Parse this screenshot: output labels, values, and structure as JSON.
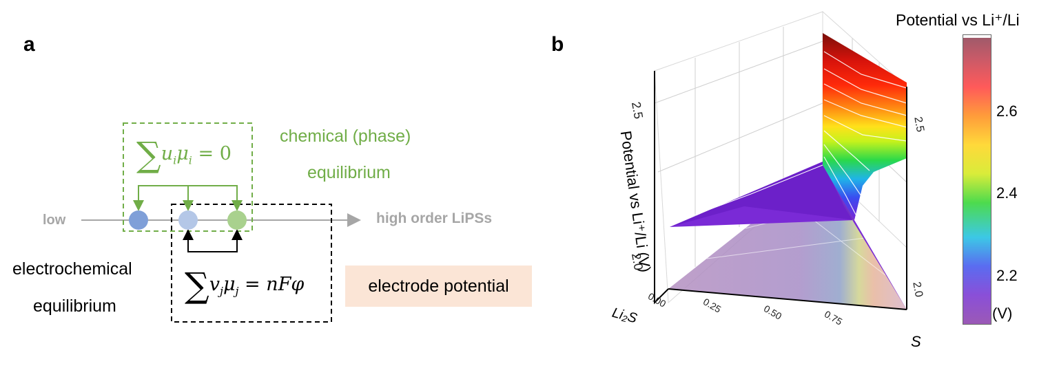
{
  "panel_a": {
    "label": "a",
    "left_text": "low",
    "right_text": "high order LiPSs",
    "chemical": {
      "line1": "chemical (phase)",
      "line2": "equilibrium",
      "sum_symbol": "∑",
      "terms": "u",
      "sub_i": "i",
      "mu": "μ",
      "sub_i2": "i",
      "rhs": " = 0"
    },
    "electrochemical": {
      "line1": "electrochemical",
      "line2": "equilibrium",
      "sum_symbol": "∑",
      "terms": "v",
      "sub_j": "j",
      "mu": "μ",
      "sub_j2": "j",
      "rhs": " = nFφ"
    },
    "electrode_box": "electrode potential",
    "colors": {
      "green": "#70ad47",
      "gray": "#a6a6a6",
      "node1": "#7f9fd8",
      "node2": "#b4c7e7",
      "node3": "#a9d18e",
      "electrode_bg": "#fbe5d6"
    }
  },
  "panel_b": {
    "label": "b",
    "zaxis_title": "Potential vs Li⁺/Li (V)",
    "z_ticks": [
      "2.5",
      "2.0"
    ],
    "right_z_ticks": [
      "2.5",
      "2.0"
    ],
    "x_ticks": [
      "0.00",
      "0.25",
      "0.50",
      "0.75"
    ],
    "x_axis_label": "Li₂S",
    "y_axis_label": "S",
    "colorbar": {
      "title": "Potential vs Li⁺/Li",
      "ticks": [
        "2.6",
        "2.4",
        "2.2"
      ],
      "unit": "(V)"
    }
  }
}
